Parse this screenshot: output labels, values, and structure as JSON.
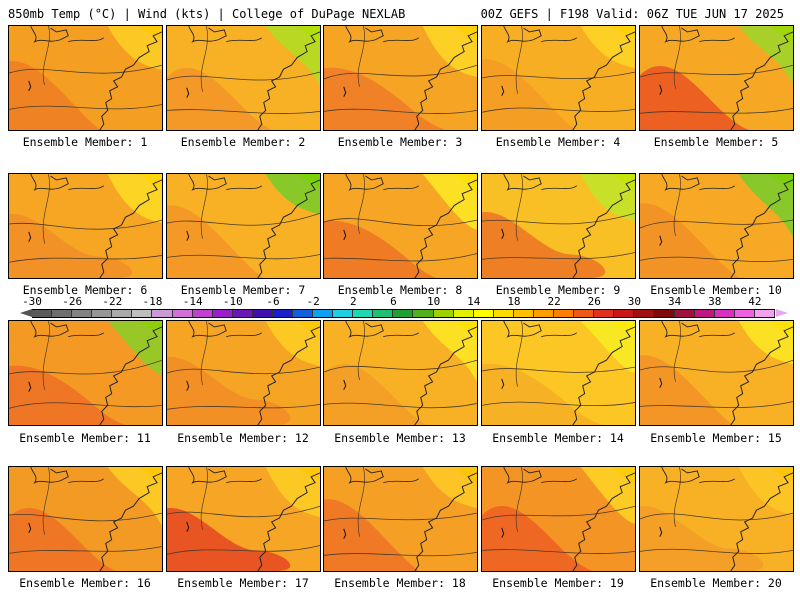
{
  "header": {
    "left": "850mb Temp (°C) | Wind (kts) | College of DuPage NEXLAB",
    "right": "00Z GEFS | F198 Valid: 06Z TUE JUN 17 2025"
  },
  "colorbar": {
    "labels": [
      "-30",
      "-26",
      "-22",
      "-18",
      "-14",
      "-10",
      "-6",
      "-2",
      "2",
      "6",
      "10",
      "14",
      "18",
      "22",
      "26",
      "30",
      "34",
      "38",
      "42"
    ],
    "colors": [
      "#5a5a5a",
      "#6e6e6e",
      "#828282",
      "#969696",
      "#aaaaaa",
      "#bebebe",
      "#c89ad6",
      "#d26fd8",
      "#c040d0",
      "#9a20c8",
      "#6a18b8",
      "#3f10b0",
      "#1a20c8",
      "#1060e0",
      "#10a0f0",
      "#20d0e0",
      "#20d8b0",
      "#20c070",
      "#20a030",
      "#50b020",
      "#a0d000",
      "#e0f000",
      "#ffff00",
      "#ffdc00",
      "#ffc000",
      "#ffa000",
      "#ff8000",
      "#f05818",
      "#e03020",
      "#c81818",
      "#a01010",
      "#800808",
      "#a01040",
      "#c01880",
      "#d830c0",
      "#f060e0",
      "#f8a0f0"
    ]
  },
  "panels": [
    {
      "label": "Ensemble Member: 1",
      "fill": "#f49e22",
      "accent": "#ee7a26",
      "cool": "#fcc824"
    },
    {
      "label": "Ensemble Member: 2",
      "fill": "#f8b024",
      "accent": "#f39028",
      "cool": "#b8d824"
    },
    {
      "label": "Ensemble Member: 3",
      "fill": "#f6a424",
      "accent": "#ee7628",
      "cool": "#fcd024"
    },
    {
      "label": "Ensemble Member: 4",
      "fill": "#f8ae22",
      "accent": "#f39a24",
      "cool": "#fcd024"
    },
    {
      "label": "Ensemble Member: 5",
      "fill": "#f6a824",
      "accent": "#e84a22",
      "cool": "#a8d028"
    },
    {
      "label": "Ensemble Member: 6",
      "fill": "#f7a624",
      "accent": "#f08a26",
      "cool": "#fcd424"
    },
    {
      "label": "Ensemble Member: 7",
      "fill": "#f8b024",
      "accent": "#f39226",
      "cool": "#88c828"
    },
    {
      "label": "Ensemble Member: 8",
      "fill": "#f6a624",
      "accent": "#ec6e26",
      "cool": "#fce024"
    },
    {
      "label": "Ensemble Member: 9",
      "fill": "#f8c024",
      "accent": "#ec6a24",
      "cool": "#c8e028"
    },
    {
      "label": "Ensemble Member: 10",
      "fill": "#f7a824",
      "accent": "#f08c26",
      "cool": "#88c82a"
    },
    {
      "label": "Ensemble Member: 11",
      "fill": "#f49a24",
      "accent": "#ec6a26",
      "cool": "#98c828"
    },
    {
      "label": "Ensemble Member: 12",
      "fill": "#f6a424",
      "accent": "#f08a26",
      "cool": "#fcc824"
    },
    {
      "label": "Ensemble Member: 13",
      "fill": "#f8b024",
      "accent": "#f39a26",
      "cool": "#fce024"
    },
    {
      "label": "Ensemble Member: 14",
      "fill": "#fcc624",
      "accent": "#f6aa24",
      "cool": "#f8e824"
    },
    {
      "label": "Ensemble Member: 15",
      "fill": "#f8b024",
      "accent": "#f28e26",
      "cool": "#fce024"
    },
    {
      "label": "Ensemble Member: 16",
      "fill": "#f39a24",
      "accent": "#ec6a26",
      "cool": "#fcc824"
    },
    {
      "label": "Ensemble Member: 17",
      "fill": "#f6a624",
      "accent": "#e43a22",
      "cool": "#fcc824"
    },
    {
      "label": "Ensemble Member: 18",
      "fill": "#f5a024",
      "accent": "#ec6c26",
      "cool": "#fcc424"
    },
    {
      "label": "Ensemble Member: 19",
      "fill": "#f49424",
      "accent": "#ec5a24",
      "cool": "#fccc24"
    },
    {
      "label": "Ensemble Member: 20",
      "fill": "#f8b024",
      "accent": "#f39a26",
      "cool": "#fcc424"
    }
  ]
}
